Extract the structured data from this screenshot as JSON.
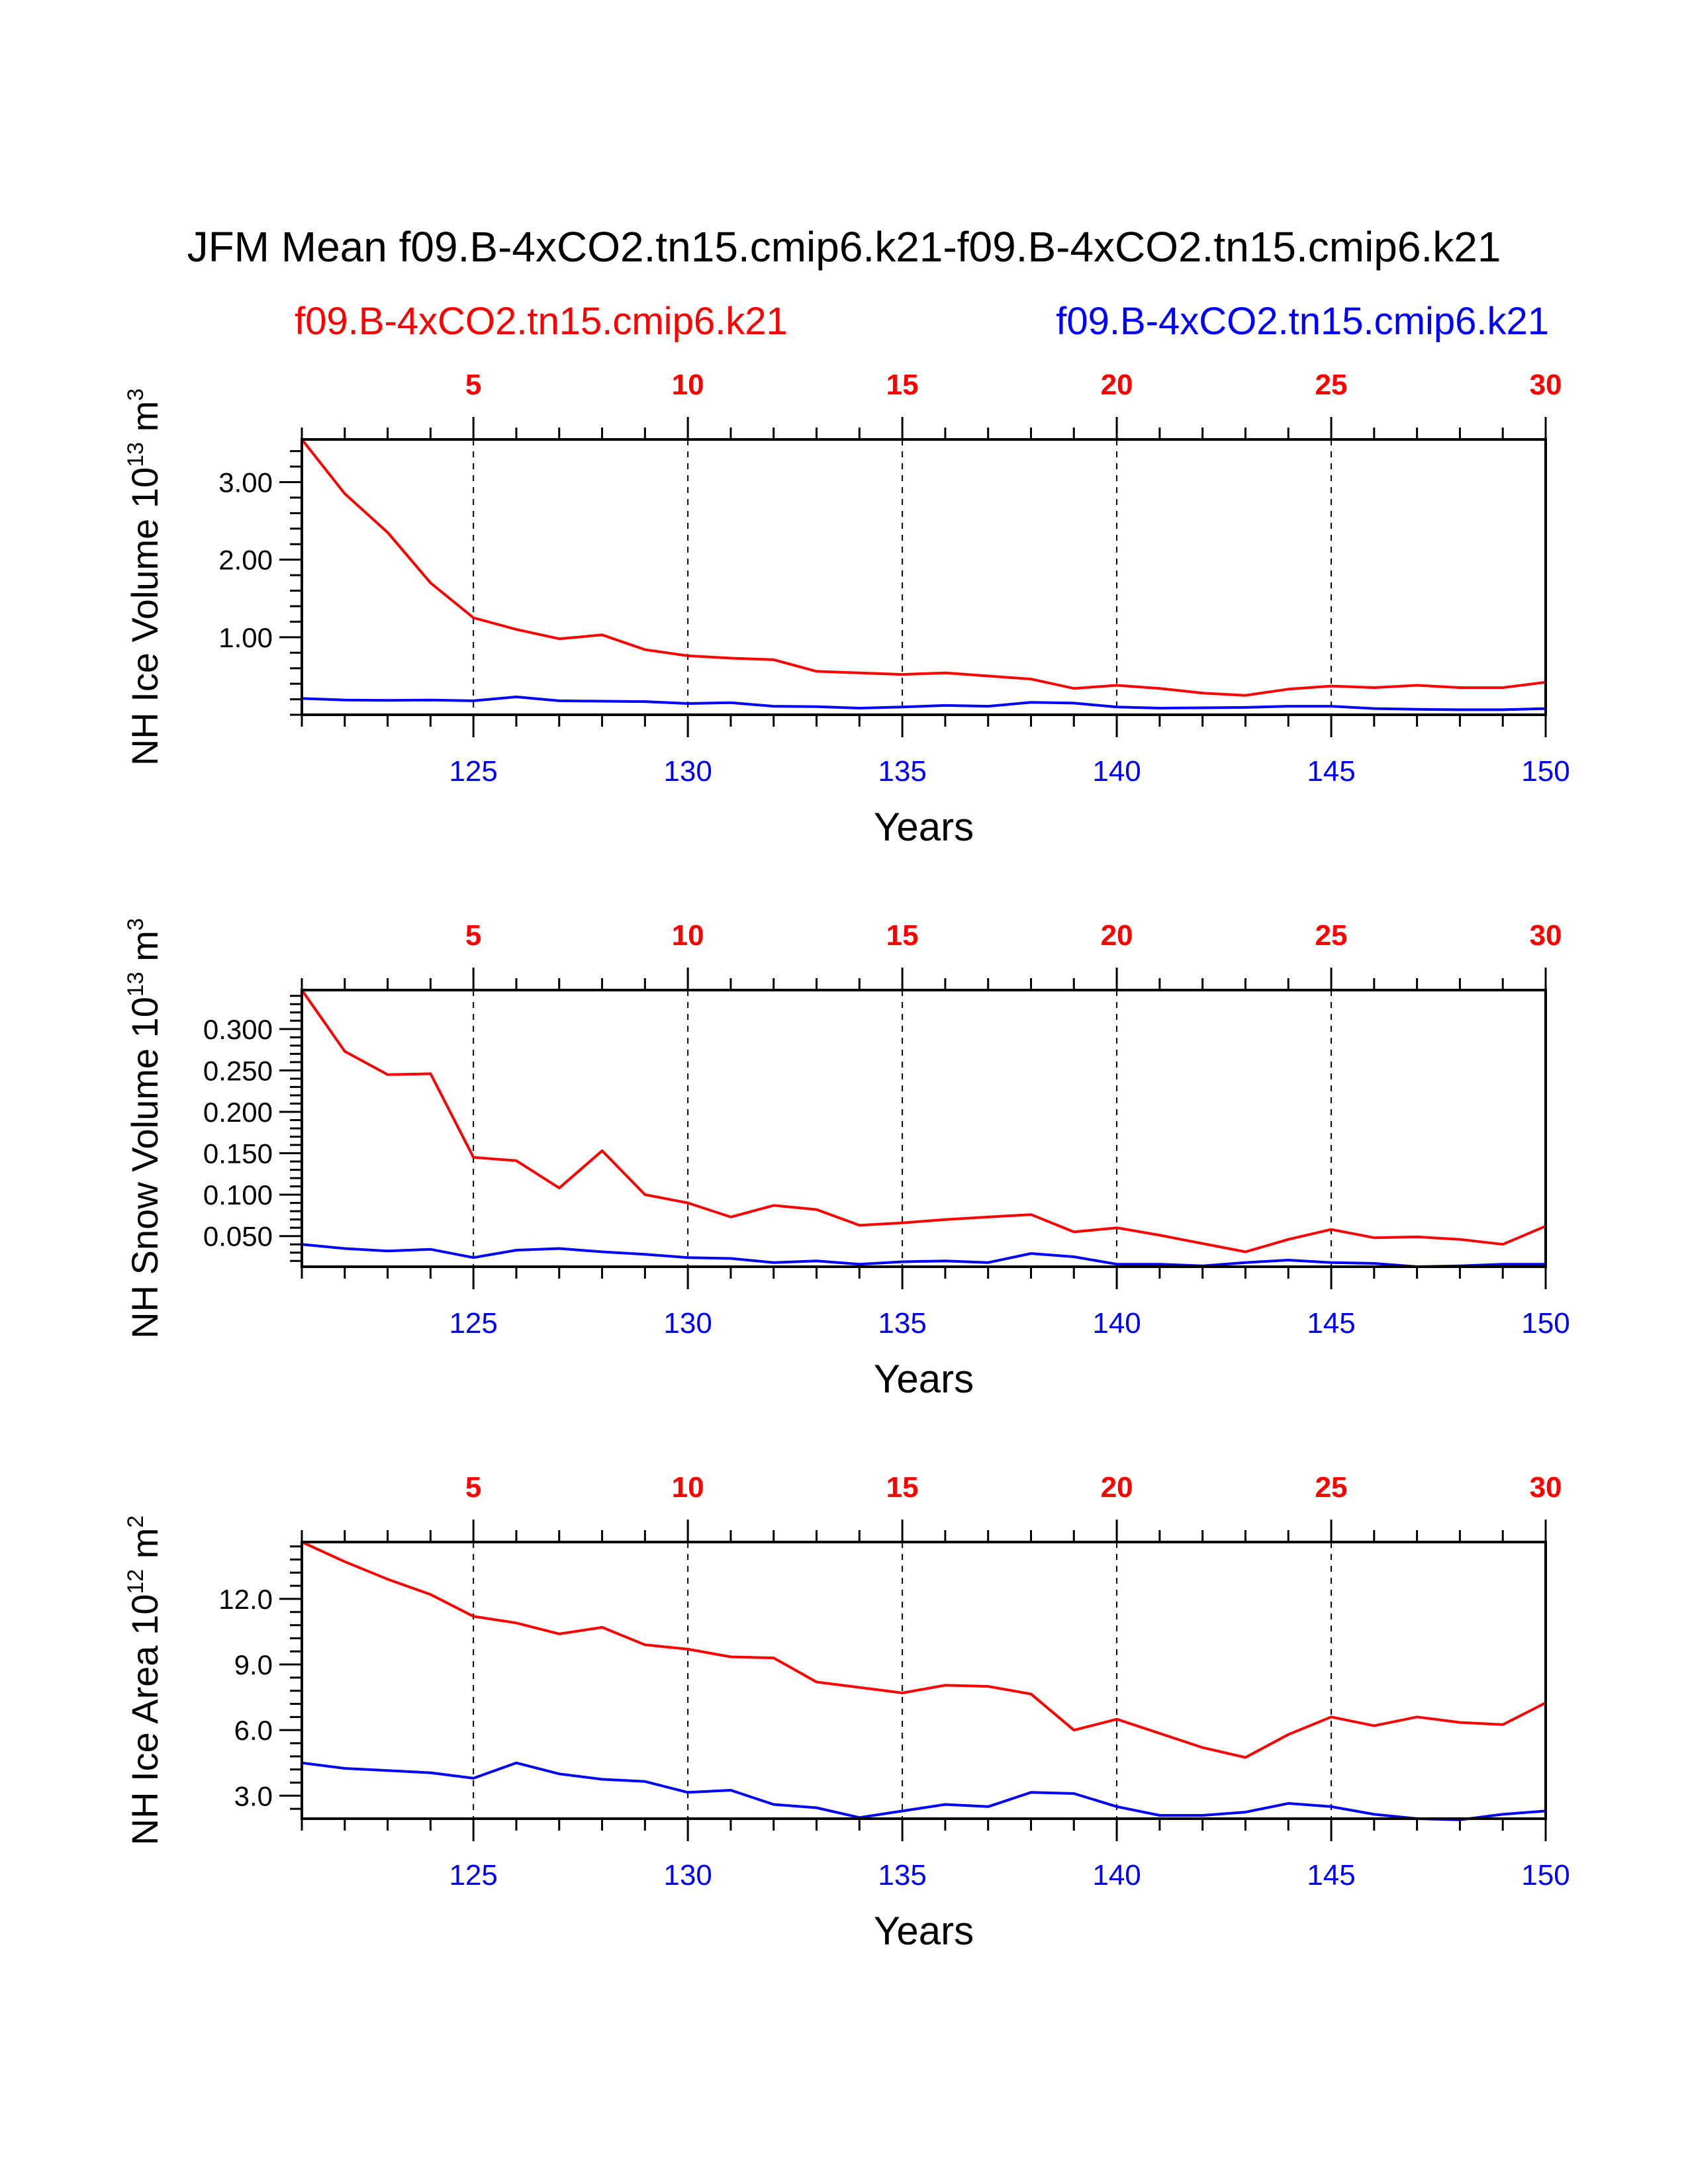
{
  "title": "JFM Mean f09.B-4xCO2.tn15.cmip6.k21-f09.B-4xCO2.tn15.cmip6.k21",
  "legend": {
    "case1": "f09.B-4xCO2.tn15.cmip6.k21",
    "case2": "f09.B-4xCO2.tn15.cmip6.k21"
  },
  "colors": {
    "case1": "#ff0000",
    "case2": "#0000ff",
    "axis": "#000000"
  },
  "chart_data": [
    {
      "type": "line",
      "ylabel": {
        "base": "NH Ice Volume 10",
        "exp": "13",
        "unit": " m",
        "unit_exp": "3"
      },
      "xlabel": "Years",
      "xlim": [
        121,
        150
      ],
      "ylim": [
        0.0,
        3.55
      ],
      "y_ticks": [
        1.0,
        2.0,
        3.0
      ],
      "y_tick_labels": [
        "1.00",
        "2.00",
        "3.00"
      ],
      "y_minor_step": 0.2,
      "top_ticks": [
        5,
        10,
        15,
        20,
        25,
        30
      ],
      "bottom_ticks": [
        125,
        130,
        135,
        140,
        145,
        150
      ],
      "x": [
        121,
        122,
        123,
        124,
        125,
        126,
        127,
        128,
        129,
        130,
        131,
        132,
        133,
        134,
        135,
        136,
        137,
        138,
        139,
        140,
        141,
        142,
        143,
        144,
        145,
        146,
        147,
        148,
        149,
        150
      ],
      "series": [
        {
          "name": "f09.B-4xCO2.tn15.cmip6.k21",
          "color": "#ff0000",
          "values": [
            3.55,
            2.85,
            2.35,
            1.7,
            1.25,
            1.1,
            0.98,
            1.03,
            0.84,
            0.76,
            0.73,
            0.71,
            0.56,
            0.54,
            0.52,
            0.54,
            0.5,
            0.46,
            0.34,
            0.38,
            0.34,
            0.28,
            0.25,
            0.33,
            0.37,
            0.35,
            0.38,
            0.35,
            0.35,
            0.42
          ]
        },
        {
          "name": "f09.B-4xCO2.tn15.cmip6.k21",
          "color": "#0000ff",
          "values": [
            0.21,
            0.19,
            0.185,
            0.19,
            0.18,
            0.23,
            0.18,
            0.175,
            0.17,
            0.145,
            0.155,
            0.11,
            0.105,
            0.085,
            0.1,
            0.12,
            0.11,
            0.16,
            0.15,
            0.1,
            0.085,
            0.09,
            0.095,
            0.11,
            0.11,
            0.08,
            0.07,
            0.065,
            0.065,
            0.08
          ]
        }
      ]
    },
    {
      "type": "line",
      "ylabel": {
        "base": "NH Snow Volume 10",
        "exp": "13",
        "unit": " m",
        "unit_exp": "3"
      },
      "xlabel": "Years",
      "xlim": [
        121,
        150
      ],
      "ylim": [
        0.013,
        0.347
      ],
      "y_ticks": [
        0.05,
        0.1,
        0.15,
        0.2,
        0.25,
        0.3
      ],
      "y_tick_labels": [
        "0.050",
        "0.100",
        "0.150",
        "0.200",
        "0.250",
        "0.300"
      ],
      "y_minor_step": 0.01,
      "top_ticks": [
        5,
        10,
        15,
        20,
        25,
        30
      ],
      "bottom_ticks": [
        125,
        130,
        135,
        140,
        145,
        150
      ],
      "x": [
        121,
        122,
        123,
        124,
        125,
        126,
        127,
        128,
        129,
        130,
        131,
        132,
        133,
        134,
        135,
        136,
        137,
        138,
        139,
        140,
        141,
        142,
        143,
        144,
        145,
        146,
        147,
        148,
        149,
        150
      ],
      "series": [
        {
          "name": "f09.B-4xCO2.tn15.cmip6.k21",
          "color": "#ff0000",
          "values": [
            0.347,
            0.273,
            0.245,
            0.246,
            0.145,
            0.141,
            0.108,
            0.153,
            0.1,
            0.09,
            0.073,
            0.087,
            0.082,
            0.063,
            0.066,
            0.07,
            0.073,
            0.076,
            0.055,
            0.06,
            0.051,
            0.041,
            0.031,
            0.046,
            0.058,
            0.048,
            0.049,
            0.046,
            0.04,
            0.062
          ]
        },
        {
          "name": "f09.B-4xCO2.tn15.cmip6.k21",
          "color": "#0000ff",
          "values": [
            0.04,
            0.035,
            0.032,
            0.034,
            0.024,
            0.033,
            0.035,
            0.031,
            0.028,
            0.024,
            0.023,
            0.018,
            0.02,
            0.016,
            0.019,
            0.02,
            0.018,
            0.029,
            0.025,
            0.016,
            0.016,
            0.014,
            0.018,
            0.021,
            0.018,
            0.017,
            0.013,
            0.014,
            0.016,
            0.016
          ]
        }
      ]
    },
    {
      "type": "line",
      "ylabel": {
        "base": "NH Ice Area 10",
        "exp": "12",
        "unit": " m",
        "unit_exp": "2"
      },
      "xlabel": "Years",
      "xlim": [
        121,
        150
      ],
      "ylim": [
        1.95,
        14.6
      ],
      "y_ticks": [
        3.0,
        6.0,
        9.0,
        12.0
      ],
      "y_tick_labels": [
        "3.0",
        "6.0",
        "9.0",
        "12.0"
      ],
      "y_minor_step": 0.6,
      "top_ticks": [
        5,
        10,
        15,
        20,
        25,
        30
      ],
      "bottom_ticks": [
        125,
        130,
        135,
        140,
        145,
        150
      ],
      "x": [
        121,
        122,
        123,
        124,
        125,
        126,
        127,
        128,
        129,
        130,
        131,
        132,
        133,
        134,
        135,
        136,
        137,
        138,
        139,
        140,
        141,
        142,
        143,
        144,
        145,
        146,
        147,
        148,
        149,
        150
      ],
      "series": [
        {
          "name": "f09.B-4xCO2.tn15.cmip6.k21",
          "color": "#ff0000",
          "values": [
            14.6,
            13.7,
            12.9,
            12.2,
            11.2,
            10.9,
            10.4,
            10.7,
            9.9,
            9.7,
            9.35,
            9.3,
            8.2,
            7.95,
            7.7,
            8.05,
            8.0,
            7.65,
            6.0,
            6.5,
            5.85,
            5.2,
            4.75,
            5.8,
            6.6,
            6.2,
            6.6,
            6.35,
            6.25,
            7.25
          ]
        },
        {
          "name": "f09.B-4xCO2.tn15.cmip6.k21",
          "color": "#0000ff",
          "values": [
            4.5,
            4.25,
            4.15,
            4.05,
            3.8,
            4.5,
            4.0,
            3.75,
            3.65,
            3.15,
            3.25,
            2.6,
            2.45,
            2.0,
            2.3,
            2.6,
            2.5,
            3.15,
            3.1,
            2.5,
            2.1,
            2.1,
            2.25,
            2.65,
            2.5,
            2.15,
            1.95,
            1.9,
            2.15,
            2.3
          ]
        }
      ]
    }
  ]
}
